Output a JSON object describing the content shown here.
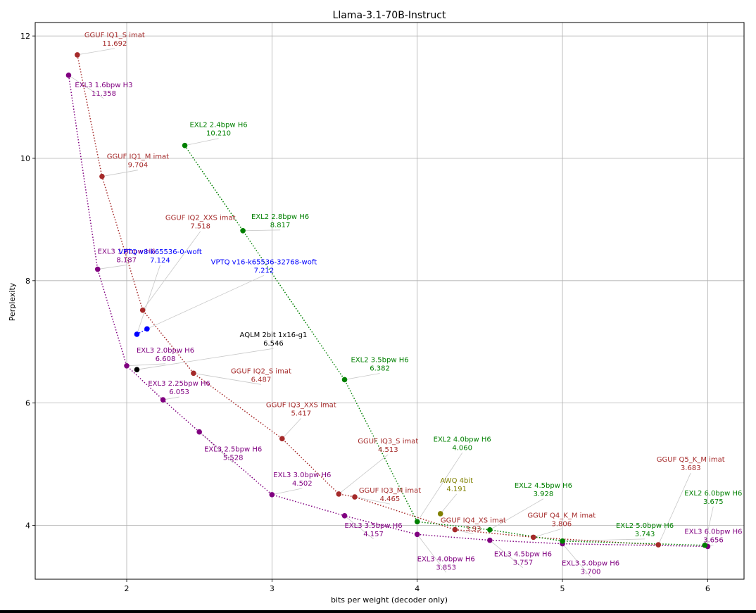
{
  "chart_data": {
    "type": "scatter",
    "title": "Llama-3.1-70B-Instruct",
    "xlabel": "bits per weight (decoder only)",
    "ylabel": "Perplexity",
    "xlim": [
      1.37,
      6.25
    ],
    "ylim": [
      3.12,
      12.22
    ],
    "xticks": [
      2,
      3,
      4,
      5,
      6
    ],
    "yticks": [
      4,
      6,
      8,
      10,
      12
    ],
    "grid": true,
    "colors": {
      "gguf": "#a52a2a",
      "exl3": "#800080",
      "exl2": "#008000",
      "vptq": "#0000ff",
      "aqlm": "#000000",
      "awq": "#808000"
    },
    "series": [
      {
        "name": "GGUF",
        "color_key": "gguf",
        "connected": true,
        "points": [
          {
            "x": 1.66,
            "y": 11.692,
            "label": "GGUF IQ1_S imat",
            "value_text": "11.692"
          },
          {
            "x": 1.83,
            "y": 9.704,
            "label": "GGUF IQ1_M imat",
            "value_text": "9.704"
          },
          {
            "x": 2.11,
            "y": 7.518,
            "label": "GGUF IQ2_XXS imat",
            "value_text": "7.518"
          },
          {
            "x": 2.46,
            "y": 6.487,
            "label": "GGUF IQ2_S imat",
            "value_text": "6.487"
          },
          {
            "x": 3.07,
            "y": 5.417,
            "label": "GGUF IQ3_XXS imat",
            "value_text": "5.417"
          },
          {
            "x": 3.46,
            "y": 4.513,
            "label": "GGUF IQ3_S imat",
            "value_text": "4.513"
          },
          {
            "x": 3.57,
            "y": 4.465,
            "label": "GGUF IQ3_M imat",
            "value_text": "4.465"
          },
          {
            "x": 4.26,
            "y": 3.93,
            "label": "GGUF IQ4_XS imat",
            "value_text": "3.93"
          },
          {
            "x": 4.8,
            "y": 3.806,
            "label": "GGUF Q4_K_M imat",
            "value_text": "3.806"
          },
          {
            "x": 5.66,
            "y": 3.683,
            "label": "GGUF Q5_K_M imat",
            "value_text": "3.683"
          }
        ]
      },
      {
        "name": "EXL3",
        "color_key": "exl3",
        "connected": true,
        "points": [
          {
            "x": 1.6,
            "y": 11.358,
            "label": "EXL3 1.6bpw H3",
            "value_text": "11.358"
          },
          {
            "x": 1.8,
            "y": 8.187,
            "label": "EXL3 1.8bpw H6",
            "value_text": "8.187"
          },
          {
            "x": 2.0,
            "y": 6.608,
            "label": "EXL3 2.0bpw H6",
            "value_text": "6.608"
          },
          {
            "x": 2.25,
            "y": 6.053,
            "label": "EXL3 2.25bpw H6",
            "value_text": "6.053"
          },
          {
            "x": 2.5,
            "y": 5.528,
            "label": "EXL3 2.5bpw H6",
            "value_text": "5.528"
          },
          {
            "x": 3.0,
            "y": 4.502,
            "label": "EXL3 3.0bpw H6",
            "value_text": "4.502"
          },
          {
            "x": 3.5,
            "y": 4.157,
            "label": "EXL3 3.5bpw H6",
            "value_text": "4.157"
          },
          {
            "x": 4.0,
            "y": 3.853,
            "label": "EXL3 4.0bpw H6",
            "value_text": "3.853"
          },
          {
            "x": 4.5,
            "y": 3.757,
            "label": "EXL3 4.5bpw H6",
            "value_text": "3.757"
          },
          {
            "x": 5.0,
            "y": 3.7,
            "label": "EXL3 5.0bpw H6",
            "value_text": "3.700"
          },
          {
            "x": 6.0,
            "y": 3.656,
            "label": "EXL3 6.0bpw H6",
            "value_text": "3.656"
          }
        ]
      },
      {
        "name": "EXL2",
        "color_key": "exl2",
        "connected": true,
        "points": [
          {
            "x": 2.4,
            "y": 10.21,
            "label": "EXL2 2.4bpw H6",
            "value_text": "10.210"
          },
          {
            "x": 2.8,
            "y": 8.817,
            "label": "EXL2 2.8bpw H6",
            "value_text": "8.817"
          },
          {
            "x": 3.5,
            "y": 6.382,
            "label": "EXL2 3.5bpw H6",
            "value_text": "6.382"
          },
          {
            "x": 4.0,
            "y": 4.06,
            "label": "EXL2 4.0bpw H6",
            "value_text": "4.060"
          },
          {
            "x": 4.5,
            "y": 3.928,
            "label": "EXL2 4.5bpw H6",
            "value_text": "3.928"
          },
          {
            "x": 5.0,
            "y": 3.743,
            "label": "EXL2 5.0bpw H6",
            "value_text": "3.743"
          },
          {
            "x": 5.98,
            "y": 3.675,
            "label": "EXL2 6.0bpw H6",
            "value_text": "3.675"
          }
        ]
      },
      {
        "name": "VPTQ",
        "color_key": "vptq",
        "connected": true,
        "points": [
          {
            "x": 2.07,
            "y": 7.124,
            "label": "VPTQ v8-k65536-0-woft",
            "value_text": "7.124"
          },
          {
            "x": 2.14,
            "y": 7.212,
            "label": "VPTQ v16-k65536-32768-woft",
            "value_text": "7.212"
          }
        ]
      },
      {
        "name": "AQLM",
        "color_key": "aqlm",
        "connected": false,
        "points": [
          {
            "x": 2.07,
            "y": 6.546,
            "label": "AQLM 2bit 1x16-g1",
            "value_text": "6.546"
          }
        ]
      },
      {
        "name": "AWQ",
        "color_key": "awq",
        "connected": false,
        "points": [
          {
            "x": 4.16,
            "y": 4.191,
            "label": "AWQ 4bit",
            "value_text": "4.191"
          }
        ]
      }
    ]
  }
}
